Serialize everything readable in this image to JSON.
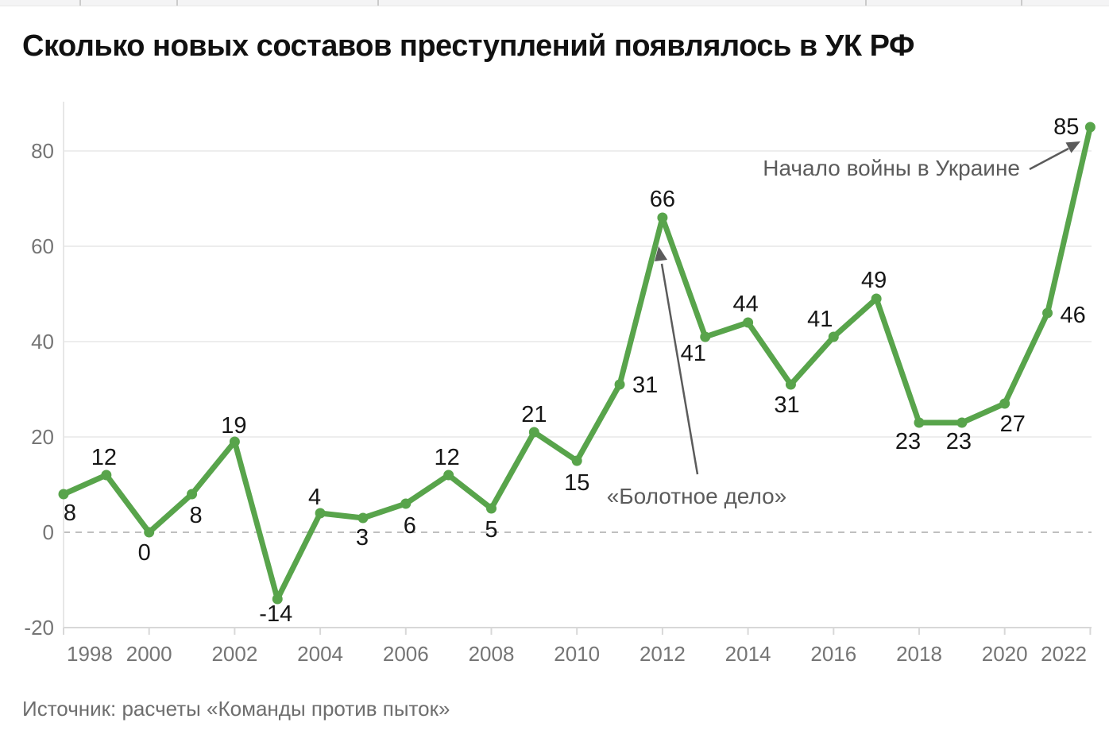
{
  "header": {
    "title": "Сколько новых составов преступлений появлялось в УК РФ"
  },
  "footer": {
    "source": "Источник: расчеты «Команды против пыток»"
  },
  "chart_data": {
    "type": "line",
    "title": "Сколько новых составов преступлений появлялось в УК РФ",
    "x": [
      1998,
      1999,
      2000,
      2001,
      2002,
      2003,
      2004,
      2005,
      2006,
      2007,
      2008,
      2009,
      2010,
      2011,
      2012,
      2013,
      2014,
      2015,
      2016,
      2017,
      2018,
      2019,
      2020,
      2021,
      2022
    ],
    "values": [
      8,
      12,
      0,
      8,
      19,
      -14,
      4,
      3,
      6,
      12,
      5,
      21,
      15,
      31,
      66,
      41,
      44,
      31,
      41,
      49,
      23,
      23,
      27,
      46,
      85
    ],
    "xlabel": "",
    "ylabel": "",
    "ylim": [
      -20,
      90
    ],
    "yticks": [
      -20,
      0,
      20,
      40,
      60,
      80
    ],
    "xticks": [
      1998,
      2000,
      2002,
      2004,
      2006,
      2008,
      2010,
      2012,
      2014,
      2016,
      2018,
      2020,
      2022
    ],
    "grid": "horizontal",
    "zero_line_style": "dashed",
    "point_labels_visible": true,
    "legend": "none",
    "colors": {
      "line": "#58a44b",
      "point_label": "#161616",
      "axis_label": "#757575",
      "annotation": "#5b5b5b",
      "gridline": "#ededed",
      "axis_line": "#d8d8d8",
      "zero_line": "#bfbfbf"
    },
    "annotations": [
      {
        "text": "Начало войны в Украине",
        "year": 2022,
        "value": 85
      },
      {
        "text": "«Болотное дело»",
        "year": 2012,
        "value": 66
      }
    ],
    "source": "Источник: расчеты «Команды против пыток»"
  }
}
